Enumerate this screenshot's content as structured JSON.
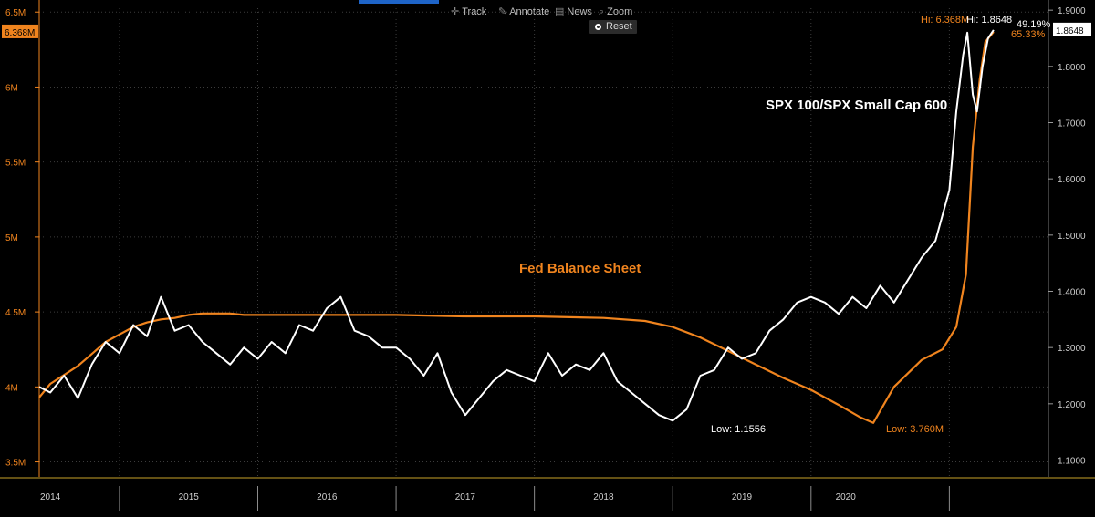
{
  "toolbar": {
    "track_label": "Track",
    "annotate_label": "Annotate",
    "news_label": "News",
    "zoom_label": "Zoom",
    "reset_label": "Reset"
  },
  "colors": {
    "background": "#000000",
    "fed_line": "#f0841e",
    "ratio_line": "#ffffff",
    "grid": "#3c3c3c",
    "left_axis": "#f0841e",
    "right_axis": "#cfcfcf",
    "accent_blue": "#1e64c8"
  },
  "chart_data": {
    "type": "line",
    "x_labels": [
      "2014",
      "2015",
      "2016",
      "2017",
      "2018",
      "2019",
      "2020"
    ],
    "left_axis": {
      "ticks": [
        "3.5M",
        "4M",
        "4.5M",
        "5M",
        "5.5M",
        "6M",
        "6.5M"
      ],
      "tick_values": [
        3.5,
        4.0,
        4.5,
        5.0,
        5.5,
        6.0,
        6.5
      ],
      "range": [
        3.4,
        6.55
      ],
      "current_label": "6.368M",
      "current_value": 6.368
    },
    "right_axis": {
      "ticks": [
        "1.1000",
        "1.2000",
        "1.3000",
        "1.4000",
        "1.5000",
        "1.6000",
        "1.7000",
        "1.8000",
        "1.9000"
      ],
      "tick_values": [
        1.1,
        1.2,
        1.3,
        1.4,
        1.5,
        1.6,
        1.7,
        1.8,
        1.9
      ],
      "range": [
        1.07,
        1.91
      ],
      "current_label": "1.8648",
      "current_value": 1.8648
    },
    "series": [
      {
        "name": "Fed Balance Sheet",
        "axis": "left",
        "t": [
          2013.42,
          2013.5,
          2013.6,
          2013.7,
          2013.8,
          2013.9,
          2014.0,
          2014.1,
          2014.2,
          2014.3,
          2014.4,
          2014.5,
          2014.6,
          2014.7,
          2014.8,
          2014.9,
          2015.0,
          2015.5,
          2016.0,
          2016.5,
          2017.0,
          2017.5,
          2017.8,
          2018.0,
          2018.2,
          2018.4,
          2018.6,
          2018.8,
          2019.0,
          2019.2,
          2019.35,
          2019.45,
          2019.6,
          2019.8,
          2019.95,
          2020.05,
          2020.12,
          2020.17,
          2020.22,
          2020.26,
          2020.32
        ],
        "values": [
          3.93,
          4.02,
          4.08,
          4.14,
          4.22,
          4.3,
          4.35,
          4.4,
          4.43,
          4.45,
          4.46,
          4.48,
          4.49,
          4.49,
          4.49,
          4.48,
          4.48,
          4.48,
          4.48,
          4.47,
          4.47,
          4.46,
          4.44,
          4.4,
          4.33,
          4.24,
          4.15,
          4.06,
          3.98,
          3.88,
          3.8,
          3.76,
          4.0,
          4.18,
          4.25,
          4.4,
          4.75,
          5.6,
          6.05,
          6.3,
          6.368
        ]
      },
      {
        "name": "SPX 100/SPX Small Cap 600",
        "axis": "right",
        "t": [
          2013.42,
          2013.5,
          2013.6,
          2013.7,
          2013.8,
          2013.9,
          2014.0,
          2014.1,
          2014.2,
          2014.3,
          2014.4,
          2014.5,
          2014.6,
          2014.7,
          2014.8,
          2014.9,
          2015.0,
          2015.1,
          2015.2,
          2015.3,
          2015.4,
          2015.5,
          2015.6,
          2015.7,
          2015.8,
          2015.9,
          2016.0,
          2016.1,
          2016.2,
          2016.3,
          2016.4,
          2016.5,
          2016.6,
          2016.7,
          2016.8,
          2016.9,
          2017.0,
          2017.1,
          2017.2,
          2017.3,
          2017.4,
          2017.5,
          2017.6,
          2017.7,
          2017.8,
          2017.9,
          2018.0,
          2018.1,
          2018.2,
          2018.3,
          2018.4,
          2018.5,
          2018.6,
          2018.7,
          2018.8,
          2018.9,
          2019.0,
          2019.1,
          2019.2,
          2019.3,
          2019.4,
          2019.5,
          2019.6,
          2019.7,
          2019.8,
          2019.9,
          2020.0,
          2020.05,
          2020.1,
          2020.13,
          2020.17,
          2020.2,
          2020.24,
          2020.28,
          2020.32
        ],
        "values": [
          1.23,
          1.22,
          1.25,
          1.21,
          1.27,
          1.31,
          1.29,
          1.34,
          1.32,
          1.39,
          1.33,
          1.34,
          1.31,
          1.29,
          1.27,
          1.3,
          1.28,
          1.31,
          1.29,
          1.34,
          1.33,
          1.37,
          1.39,
          1.33,
          1.32,
          1.3,
          1.3,
          1.28,
          1.25,
          1.29,
          1.22,
          1.18,
          1.21,
          1.24,
          1.26,
          1.25,
          1.24,
          1.29,
          1.25,
          1.27,
          1.26,
          1.29,
          1.24,
          1.22,
          1.2,
          1.18,
          1.17,
          1.19,
          1.25,
          1.26,
          1.3,
          1.28,
          1.29,
          1.33,
          1.35,
          1.38,
          1.39,
          1.38,
          1.36,
          1.39,
          1.37,
          1.41,
          1.38,
          1.42,
          1.46,
          1.49,
          1.58,
          1.72,
          1.82,
          1.86,
          1.75,
          1.72,
          1.8,
          1.85,
          1.8648
        ]
      }
    ],
    "annotations": {
      "ratio_low": "Low: 1.1556",
      "fed_low": "Low: 3.760M",
      "fed_hi": "Hi: 6.368M",
      "ratio_hi": "Hi: 1.8648",
      "ratio_pct": "49.19%",
      "fed_pct": "65.33%",
      "fed_label": "Fed Balance Sheet",
      "ratio_label": "SPX 100/SPX Small Cap 600"
    }
  }
}
